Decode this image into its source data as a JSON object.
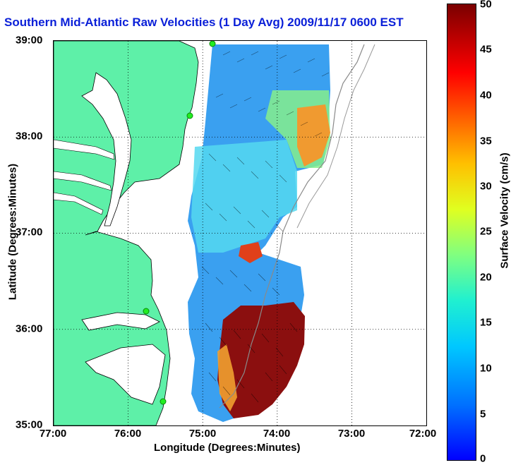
{
  "title": "Southern Mid-Atlantic Raw Velocities (1 Day Avg) 2009/11/17 0600 EST",
  "x_axis": {
    "label": "Longitude (Degrees:Minutes)",
    "ticks": [
      "77:00",
      "76:00",
      "75:00",
      "74:00",
      "73:00",
      "72:00"
    ]
  },
  "y_axis": {
    "label": "Latitude (Degrees:Minutes)",
    "ticks": [
      "39:00",
      "38:00",
      "37:00",
      "36:00",
      "35:00"
    ]
  },
  "colorbar": {
    "label": "Surface Velocity (cm/s)",
    "ticks": [
      "50",
      "45",
      "40",
      "35",
      "30",
      "25",
      "20",
      "15",
      "10",
      "5",
      "0"
    ],
    "min": 0,
    "max": 50
  },
  "map": {
    "grid": true,
    "land_color": "#5ef0a8",
    "coastline_color": "#000000",
    "station_color": "#22ee22"
  }
}
